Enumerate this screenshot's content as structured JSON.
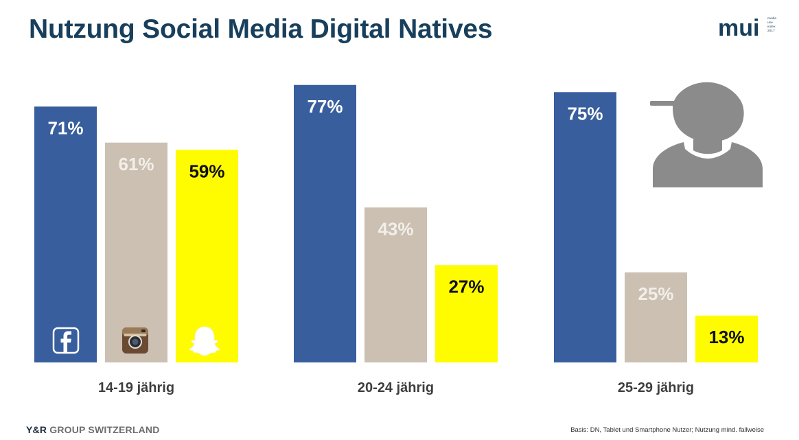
{
  "title": "Nutzung Social Media Digital Natives",
  "logo": {
    "text": "mui",
    "tagline": [
      "media",
      "use",
      "index",
      "2017"
    ]
  },
  "icons": {
    "facebook": "facebook-icon",
    "instagram": "instagram-icon",
    "snapchat": "snapchat-icon",
    "person": "person-silhouette-icon"
  },
  "colors": {
    "facebook": "#385e9d",
    "instagram": "#cbc0b2",
    "snapchat": "#fffc00",
    "title": "#183f5c",
    "person": "#8b8b8b"
  },
  "chart_data": {
    "type": "bar",
    "categories": [
      "14-19 jährig",
      "20-24 jährig",
      "25-29 jährig"
    ],
    "series": [
      {
        "values": [
          71,
          77,
          75
        ]
      },
      {
        "values": [
          61,
          43,
          25
        ]
      },
      {
        "values": [
          59,
          27,
          13
        ]
      }
    ],
    "value_labels": [
      [
        "71%",
        "61%",
        "59%"
      ],
      [
        "77%",
        "43%",
        "27%"
      ],
      [
        "75%",
        "25%",
        "13%"
      ]
    ],
    "ylim": [
      0,
      100
    ],
    "grid": false,
    "legend": "icons inside first bar group"
  },
  "footer": {
    "brand": "Y&R",
    "group": " GROUP SWITZERLAND",
    "note": "Basis: DN, Tablet und Smartphone Nutzer; Nutzung mind. fallweise"
  }
}
